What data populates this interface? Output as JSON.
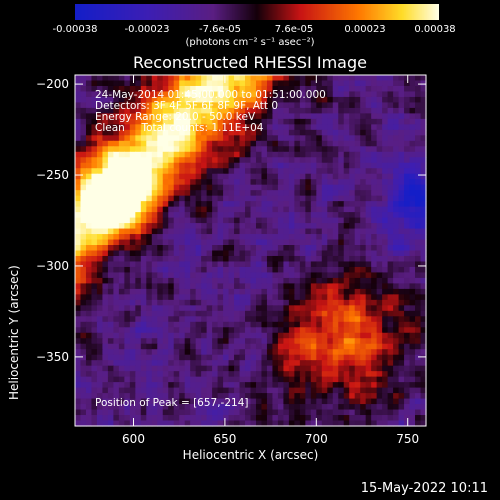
{
  "colorbar": {
    "tick_labels": [
      "-0.00038",
      "-0.00023",
      "-7.6e-05",
      "7.6e-05",
      "0.00023",
      "0.00038"
    ],
    "tick_values": [
      -0.00038,
      -0.00023,
      -7.6e-05,
      7.6e-05,
      0.00023,
      0.00038
    ],
    "unit_label": "(photons cm⁻² s⁻¹ asec⁻²)",
    "range": [
      -0.00038,
      0.00038
    ]
  },
  "chart_data": {
    "type": "heatmap",
    "title": "Reconstructed RHESSI Image",
    "xlabel": "Heliocentric X (arcsec)",
    "ylabel": "Heliocentric Y (arcsec)",
    "xlim": [
      568,
      760
    ],
    "ylim": [
      -388,
      -195
    ],
    "x_ticks": [
      600,
      650,
      700,
      750
    ],
    "y_ticks": [
      -200,
      -250,
      -300,
      -350
    ],
    "x_tick_labels": [
      "600",
      "650",
      "700",
      "750"
    ],
    "y_tick_labels": [
      "−200",
      "−250",
      "−300",
      "−350"
    ],
    "peak": [
      657,
      -214
    ],
    "colormap": "rhessi-blue-purple-red-yellow-white"
  },
  "annotations": {
    "line1": "24-May-2014 01:45:00.000 to 01:51:00.000",
    "line2": "Detectors: 3F 4F 5F 6F 8F 9F, Att 0",
    "line3": "Energy Range: 20.0 - 50.0 keV",
    "line4": "Clean     Total counts: 1.11E+04",
    "peak_text": "Position of Peak = [657,-214]"
  },
  "footer": {
    "date": "15-May-2022 10:11"
  }
}
